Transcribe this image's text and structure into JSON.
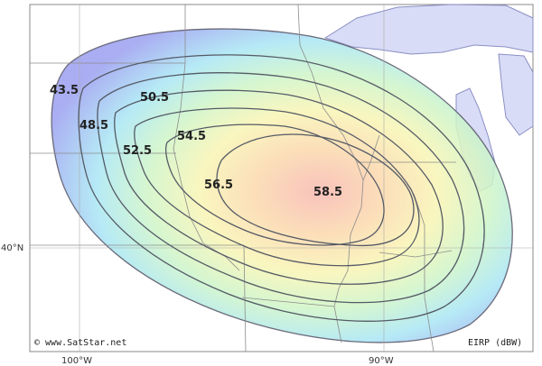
{
  "map": {
    "copyright": "© www.SatStar.net",
    "legend_unit": "EIRP (dBW)",
    "lon_labels": [
      "100°W",
      "90°W"
    ],
    "lat_labels": [
      "40°N"
    ],
    "contours": [
      {
        "label": "43.5",
        "color": "#9aa0ee"
      },
      {
        "label": "48.5",
        "color": "#a6dcf3"
      },
      {
        "label": "50.5",
        "color": "#b8f0e3"
      },
      {
        "label": "52.5",
        "color": "#d4f6c3"
      },
      {
        "label": "54.5",
        "color": "#f7f3b2"
      },
      {
        "label": "56.5",
        "color": "#fbe2a6"
      },
      {
        "label": "58.5",
        "color": "#f9c4ad"
      }
    ],
    "colors": {
      "land": "#ffffff",
      "water": "#d9dcf6",
      "outline": "#555555",
      "border": "#999999"
    }
  }
}
